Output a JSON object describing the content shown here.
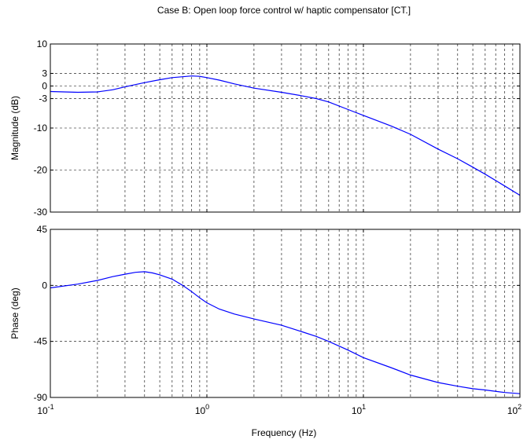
{
  "chart_data": {
    "type": "line",
    "title": "Case B: Open loop force control w/ haptic compensator [CT.]",
    "xlabel": "Frequency (Hz)",
    "xscale": "log",
    "xlim": [
      0.1,
      100
    ],
    "x_ticks": [
      0.1,
      1,
      10,
      100
    ],
    "x_tick_labels": [
      {
        "base": "10",
        "exp": "-1"
      },
      {
        "base": "10",
        "exp": "0"
      },
      {
        "base": "10",
        "exp": "1"
      },
      {
        "base": "10",
        "exp": "2"
      }
    ],
    "grid": true,
    "line_color": "#0000ff",
    "panels": [
      {
        "ylabel": "Magnitude (dB)",
        "ylim": [
          -30,
          10
        ],
        "y_ticks": [
          10,
          3,
          0,
          -3,
          -10,
          -20,
          -30
        ],
        "y_tick_labels": [
          "10",
          "3",
          "0",
          "-3",
          "-10",
          "-20",
          "-30"
        ],
        "series": [
          {
            "x": [
              0.1,
              0.15,
              0.2,
              0.25,
              0.3,
              0.4,
              0.5,
              0.6,
              0.7,
              0.8,
              0.9,
              1.0,
              1.2,
              1.5,
              2,
              3,
              4,
              5,
              6,
              8,
              10,
              15,
              20,
              30,
              40,
              50,
              60,
              80,
              100
            ],
            "y": [
              -1.3,
              -1.5,
              -1.4,
              -0.9,
              -0.2,
              0.8,
              1.5,
              2.0,
              2.2,
              2.4,
              2.3,
              2.0,
              1.4,
              0.5,
              -0.5,
              -1.5,
              -2.3,
              -3.0,
              -3.8,
              -5.6,
              -7.0,
              -9.5,
              -11.5,
              -15.0,
              -17.3,
              -19.3,
              -21.0,
              -23.8,
              -26.0
            ]
          }
        ]
      },
      {
        "ylabel": "Phase (deg)",
        "ylim": [
          -90,
          45
        ],
        "y_ticks": [
          45,
          0,
          -45,
          -90
        ],
        "y_tick_labels": [
          "45",
          "0",
          "-45",
          "-90"
        ],
        "series": [
          {
            "x": [
              0.1,
              0.15,
              0.2,
              0.25,
              0.3,
              0.35,
              0.4,
              0.45,
              0.5,
              0.6,
              0.7,
              0.8,
              0.9,
              1.0,
              1.2,
              1.5,
              2,
              3,
              4,
              5,
              6,
              8,
              10,
              15,
              20,
              30,
              40,
              50,
              60,
              80,
              100
            ],
            "y": [
              -2,
              1,
              4,
              7,
              9,
              10.5,
              11,
              10,
              8.5,
              5,
              0,
              -5,
              -10,
              -14,
              -19,
              -23,
              -27,
              -32,
              -37,
              -41,
              -45,
              -52,
              -58,
              -66,
              -72,
              -78,
              -81,
              -83,
              -84,
              -86,
              -87
            ]
          }
        ]
      }
    ]
  }
}
